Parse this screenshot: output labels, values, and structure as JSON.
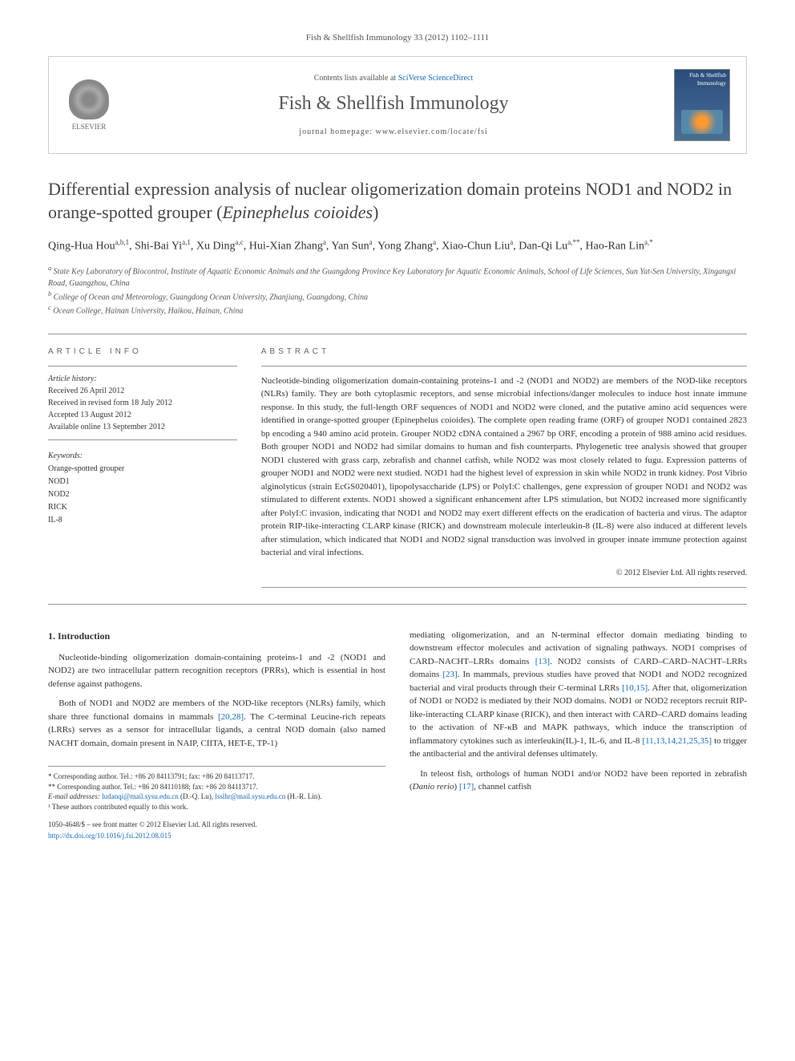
{
  "journal_ref": "Fish & Shellfish Immunology 33 (2012) 1102–1111",
  "header": {
    "contents_prefix": "Contents lists available at ",
    "contents_link": "SciVerse ScienceDirect",
    "journal_name": "Fish & Shellfish Immunology",
    "homepage": "journal homepage: www.elsevier.com/locate/fsi",
    "elsevier": "ELSEVIER",
    "cover_title": "Fish & Shellfish Immunology"
  },
  "title": {
    "main": "Differential expression analysis of nuclear oligomerization domain proteins NOD1 and NOD2 in orange-spotted grouper (",
    "species": "Epinephelus coioides",
    "close": ")"
  },
  "authors": "Qing-Hua Hou<sup>a,b,1</sup>, Shi-Bai Yi<sup>a,1</sup>, Xu Ding<sup>a,c</sup>, Hui-Xian Zhang<sup>a</sup>, Yan Sun<sup>a</sup>, Yong Zhang<sup>a</sup>, Xiao-Chun Liu<sup>a</sup>, Dan-Qi Lu<sup>a,**</sup>, Hao-Ran Lin<sup>a,*</sup>",
  "affiliations": {
    "a": "State Key Laboratory of Biocontrol, Institute of Aquatic Economic Animals and the Guangdong Province Key Laboratory for Aquatic Economic Animals, School of Life Sciences, Sun Yat-Sen University, Xingangxi Road, Guangzhou, China",
    "b": "College of Ocean and Meteorology, Guangdong Ocean University, Zhanjiang, Guangdong, China",
    "c": "Ocean College, Hainan University, Haikou, Hainan, China"
  },
  "article_info": {
    "label": "ARTICLE INFO",
    "history_label": "Article history:",
    "received": "Received 26 April 2012",
    "revised": "Received in revised form 18 July 2012",
    "accepted": "Accepted 13 August 2012",
    "online": "Available online 13 September 2012",
    "keywords_label": "Keywords:",
    "keywords": [
      "Orange-spotted grouper",
      "NOD1",
      "NOD2",
      "RICK",
      "IL-8"
    ]
  },
  "abstract": {
    "label": "ABSTRACT",
    "text": "Nucleotide-binding oligomerization domain-containing proteins-1 and -2 (NOD1 and NOD2) are members of the NOD-like receptors (NLRs) family. They are both cytoplasmic receptors, and sense microbial infections/danger molecules to induce host innate immune response. In this study, the full-length ORF sequences of NOD1 and NOD2 were cloned, and the putative amino acid sequences were identified in orange-spotted grouper (Epinephelus coioides). The complete open reading frame (ORF) of grouper NOD1 contained 2823 bp encoding a 940 amino acid protein. Grouper NOD2 cDNA contained a 2967 bp ORF, encoding a protein of 988 amino acid residues. Both grouper NOD1 and NOD2 had similar domains to human and fish counterparts. Phylogenetic tree analysis showed that grouper NOD1 clustered with grass carp, zebrafish and channel catfish, while NOD2 was most closely related to fugu. Expression patterns of grouper NOD1 and NOD2 were next studied. NOD1 had the highest level of expression in skin while NOD2 in trunk kidney. Post Vibrio alginolyticus (strain EcGS020401), lipopolysaccharide (LPS) or PolyI:C challenges, gene expression of grouper NOD1 and NOD2 was stimulated to different extents. NOD1 showed a significant enhancement after LPS stimulation, but NOD2 increased more significantly after PolyI:C invasion, indicating that NOD1 and NOD2 may exert different effects on the eradication of bacteria and virus. The adaptor protein RIP-like-interacting CLARP kinase (RICK) and downstream molecule interleukin-8 (IL-8) were also induced at different levels after stimulation, which indicated that NOD1 and NOD2 signal transduction was involved in grouper innate immune protection against bacterial and viral infections.",
    "copyright": "© 2012 Elsevier Ltd. All rights reserved."
  },
  "intro": {
    "heading": "1. Introduction",
    "p1": "Nucleotide-binding oligomerization domain-containing proteins-1 and -2 (NOD1 and NOD2) are two intracellular pattern recognition receptors (PRRs), which is essential in host defense against pathogens.",
    "p2_a": "Both of NOD1 and NOD2 are members of the NOD-like receptors (NLRs) family, which share three functional domains in mammals ",
    "p2_ref1": "[20,28]",
    "p2_b": ". The C-terminal Leucine-rich repeats (LRRs) serves as a sensor for intracellular ligands, a central NOD domain (also named NACHT domain, domain present in NAIP, CIITA, HET-E, TP-1)",
    "p3_a": "mediating oligomerization, and an N-terminal effector domain mediating binding to downstream effector molecules and activation of signaling pathways. NOD1 comprises of CARD–NACHT–LRRs domains ",
    "p3_ref1": "[13]",
    "p3_b": ". NOD2 consists of CARD–CARD–NACHT–LRRs domains ",
    "p3_ref2": "[23]",
    "p3_c": ". In mammals, previous studies have proved that NOD1 and NOD2 recognized bacterial and viral products through their C-terminal LRRs ",
    "p3_ref3": "[10,15]",
    "p3_d": ". After that, oligomerization of NOD1 or NOD2 is mediated by their NOD domains. NOD1 or NOD2 receptors recruit RIP-like-interacting CLARP kinase (RICK), and then interact with CARD–CARD domains leading to the activation of NF-κB and MAPK pathways, which induce the transcription of inflammatory cytokines such as interleukin(IL)-1, IL-6, and IL-8 ",
    "p3_ref4": "[11,13,14,21,25,35]",
    "p3_e": " to trigger the antibacterial and the antiviral defenses ultimately.",
    "p4_a": "In teleost fish, orthologs of human NOD1 and/or NOD2 have been reported in zebrafish (",
    "p4_species": "Danio rerio",
    "p4_b": ") ",
    "p4_ref1": "[17]",
    "p4_c": ", channel catfish"
  },
  "footer": {
    "corr1": "* Corresponding author. Tel.: +86 20 84113791; fax: +86 20 84113717.",
    "corr2": "** Corresponding author. Tel.: +86 20 84110188; fax: +86 20 84113717.",
    "email_label": "E-mail addresses: ",
    "email1": "ludanqi@mail.sysu.edu.cn",
    "email1_name": " (D.-Q. Lu), ",
    "email2": "lsslhr@mail.sysu.edu.cn",
    "email2_name": " (H.-R. Lin).",
    "note1": "¹ These authors contributed equally to this work.",
    "issn": "1050-4648/$ – see front matter © 2012 Elsevier Ltd. All rights reserved.",
    "doi": "http://dx.doi.org/10.1016/j.fsi.2012.08.015"
  },
  "colors": {
    "link": "#1a6bb3",
    "text": "#333333",
    "muted": "#555555",
    "border": "#999999"
  }
}
